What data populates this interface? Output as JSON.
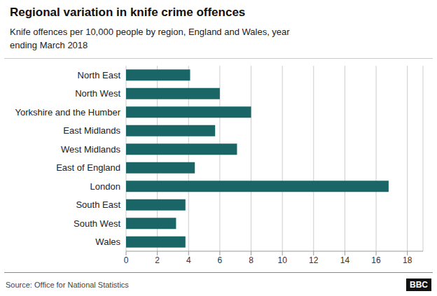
{
  "chart_data": {
    "type": "bar",
    "orientation": "horizontal",
    "title": "Regional variation in knife crime offences",
    "subtitle": "Knife offences per 10,000 people by region, England and Wales, year\nending March 2018",
    "source": "Source: Office for National Statistics",
    "annotations": [
      "BBC"
    ],
    "categories": [
      "Wales",
      "South West",
      "South East",
      "London",
      "East of England",
      "West Midlands",
      "East Midlands",
      "Yorkshire and the Humber",
      "North West",
      "North East"
    ],
    "values": [
      3.8,
      3.2,
      3.8,
      16.8,
      4.4,
      7.1,
      5.7,
      8.0,
      6.0,
      4.1
    ],
    "color": "#1a6666",
    "xlim": [
      0,
      19
    ],
    "xticks": [
      0,
      2,
      4,
      6,
      8,
      10,
      12,
      14,
      16,
      18
    ],
    "grid": true
  }
}
